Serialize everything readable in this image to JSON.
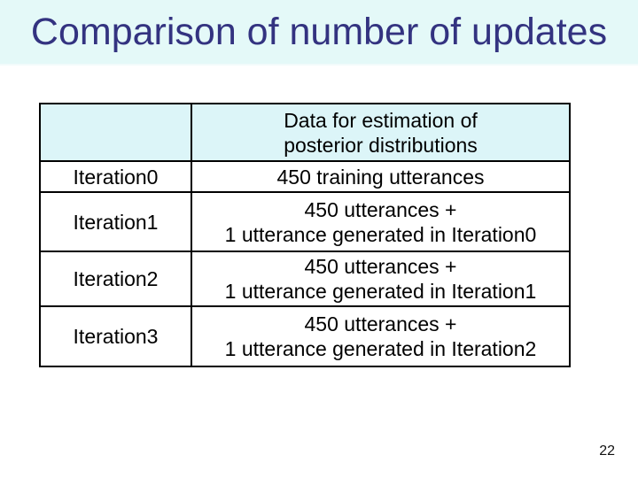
{
  "slide": {
    "title": "Comparison of number of updates",
    "page_number": "22"
  },
  "table": {
    "header": {
      "line1": "Data for estimation of",
      "line2": "posterior distributions"
    },
    "rows": [
      {
        "label": "Iteration0",
        "line1": "450 training utterances"
      },
      {
        "label": "Iteration1",
        "line1": "450 utterances +",
        "line2": "1 utterance generated in Iteration0"
      },
      {
        "label": "Iteration2",
        "line1": "450 utterances +",
        "line2": "1 utterance generated in Iteration1"
      },
      {
        "label": "Iteration3",
        "line1": "450 utterances +",
        "line2": "1 utterance generated in Iteration2"
      }
    ]
  },
  "colors": {
    "title_text": "#333380",
    "band_background": "#e4f9f8",
    "header_cell_background": "#dcf5f8",
    "table_border": "#000000",
    "body_text": "#000000"
  }
}
